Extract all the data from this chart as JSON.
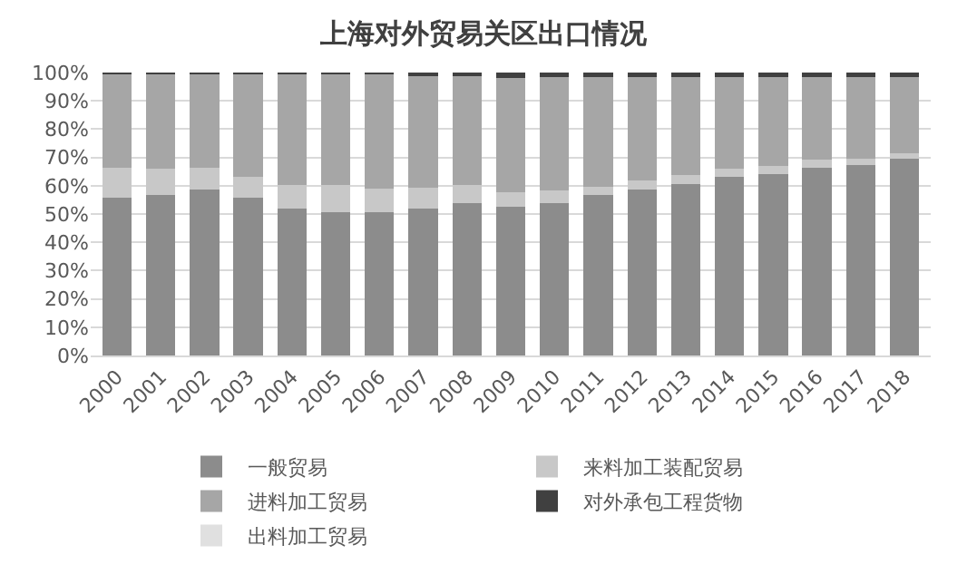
{
  "chart_data": {
    "type": "bar",
    "title": "上海对外贸易关区出口情况",
    "stacked": true,
    "categories": [
      "2000",
      "2001",
      "2002",
      "2003",
      "2004",
      "2005",
      "2006",
      "2007",
      "2008",
      "2009",
      "2010",
      "2011",
      "2012",
      "2013",
      "2014",
      "2015",
      "2016",
      "2017",
      "2018"
    ],
    "series": [
      {
        "name": "一般贸易",
        "color": "#8c8c8c",
        "values": [
          55.7,
          56.7,
          58.6,
          55.7,
          52.0,
          50.7,
          50.7,
          52.0,
          53.9,
          52.7,
          53.9,
          56.7,
          58.8,
          60.6,
          63.1,
          64.0,
          66.3,
          67.4,
          69.5
        ]
      },
      {
        "name": "来料加工装配贸易",
        "color": "#c8c8c8",
        "values": [
          10.6,
          9.2,
          7.9,
          7.4,
          8.3,
          9.6,
          8.3,
          7.3,
          6.2,
          5.1,
          4.3,
          3.0,
          3.0,
          3.2,
          2.8,
          3.0,
          2.8,
          2.3,
          2.1
        ]
      },
      {
        "name": "进料加工贸易",
        "color": "#a6a6a6",
        "values": [
          33.4,
          33.8,
          33.2,
          36.6,
          39.4,
          39.4,
          40.7,
          39.9,
          38.9,
          40.2,
          40.3,
          38.8,
          36.7,
          34.7,
          32.6,
          31.5,
          29.4,
          28.8,
          26.9
        ]
      },
      {
        "name": "对外承包工程货物",
        "color": "#404040",
        "values": [
          0.3,
          0.3,
          0.3,
          0.3,
          0.3,
          0.3,
          0.3,
          0.8,
          1.0,
          2.0,
          1.5,
          1.5,
          1.5,
          1.5,
          1.5,
          1.5,
          1.5,
          1.5,
          1.5
        ]
      },
      {
        "name": "出料加工贸易",
        "color": "#e0e0e0",
        "values": [
          0,
          0,
          0,
          0,
          0,
          0,
          0,
          0,
          0,
          0,
          0,
          0,
          0,
          0,
          0,
          0,
          0,
          0,
          0
        ]
      }
    ],
    "ylim": [
      0,
      100
    ],
    "yticks": [
      {
        "value": 0,
        "label": "0%"
      },
      {
        "value": 10,
        "label": "10%"
      },
      {
        "value": 20,
        "label": "20%"
      },
      {
        "value": 30,
        "label": "30%"
      },
      {
        "value": 40,
        "label": "40%"
      },
      {
        "value": 50,
        "label": "50%"
      },
      {
        "value": 60,
        "label": "60%"
      },
      {
        "value": 70,
        "label": "70%"
      },
      {
        "value": 80,
        "label": "80%"
      },
      {
        "value": 90,
        "label": "90%"
      },
      {
        "value": 100,
        "label": "100%"
      }
    ],
    "grid": "y",
    "legend": "bottom"
  }
}
